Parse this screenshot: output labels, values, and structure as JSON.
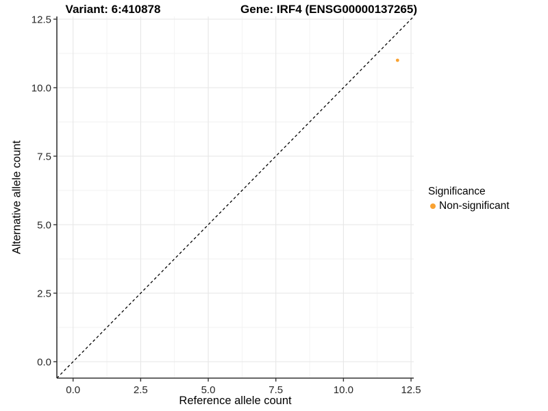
{
  "chart_data": {
    "type": "scatter",
    "title_left": "Variant: 6:410878",
    "title_right": "Gene: IRF4 (ENSG00000137265)",
    "xlabel": "Reference allele count",
    "ylabel": "Alternative allele count",
    "xlim": [
      -0.6,
      12.6
    ],
    "ylim": [
      -0.6,
      12.6
    ],
    "xticks": {
      "values": [
        0,
        2.5,
        5,
        7.5,
        10,
        12.5
      ],
      "labels": [
        "0.0",
        "2.5",
        "5.0",
        "7.5",
        "10.0",
        "12.5"
      ]
    },
    "yticks": {
      "values": [
        0,
        2.5,
        5,
        7.5,
        10,
        12.5
      ],
      "labels": [
        "0.0",
        "2.5",
        "5.0",
        "7.5",
        "10.0",
        "12.5"
      ]
    },
    "grid": {
      "major_color": "#e6e6e6",
      "minor_color": "#f2f2f2",
      "minor": true
    },
    "axis_color": "#333333",
    "identity_line": {
      "dashed": true,
      "color": "#000000",
      "slope": 1,
      "intercept": 0
    },
    "points": [
      {
        "x": 12,
        "y": 11,
        "series": "Non-significant",
        "color": "#F9A232",
        "radius": 2.4
      }
    ],
    "legend": {
      "title": "Significance",
      "position": "right",
      "items": [
        {
          "label": "Non-significant",
          "color": "#F9A232"
        }
      ]
    }
  }
}
